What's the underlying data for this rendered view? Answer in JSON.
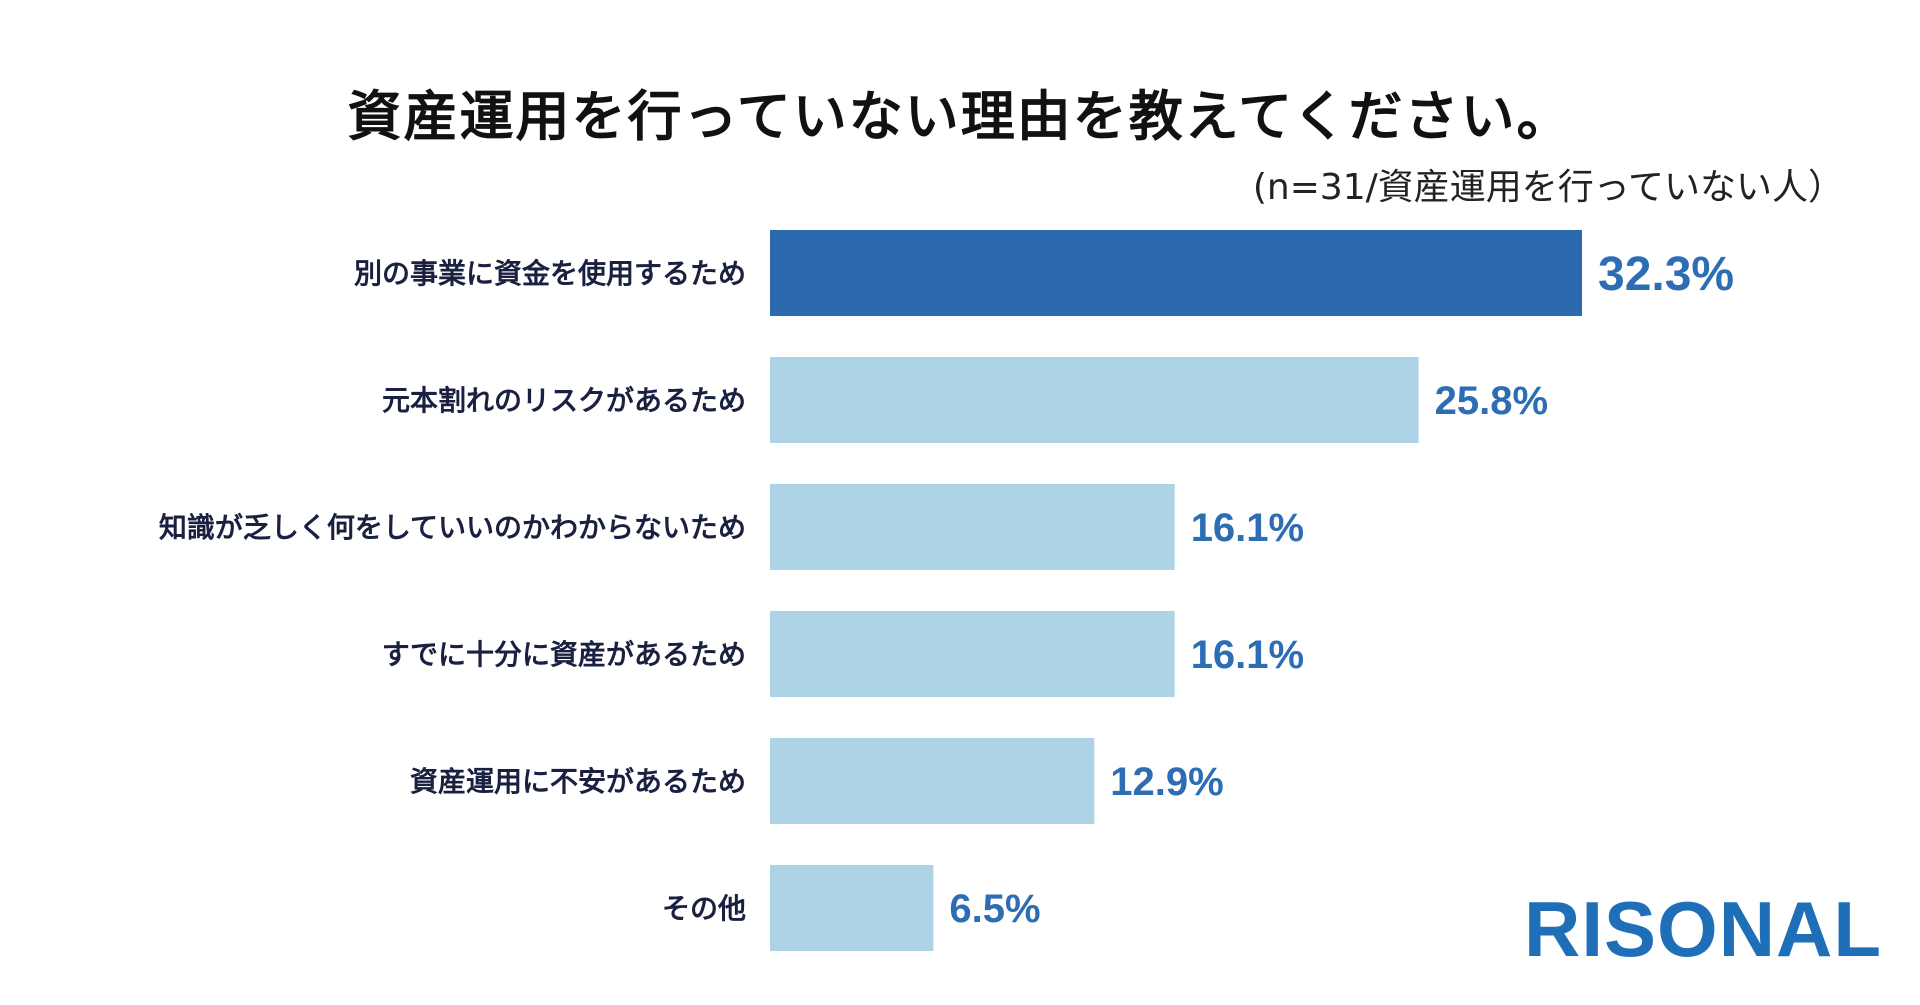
{
  "chart_data": {
    "type": "bar",
    "orientation": "horizontal",
    "title": "資産運用を行っていない理由を教えてください。",
    "subtitle": "(n=31/資産運用を行っていない人）",
    "categories": [
      "別の事業に資金を使用するため",
      "元本割れのリスクがあるため",
      "知識が乏しく何をしていいのかわからないため",
      "すでに十分に資産があるため",
      "資産運用に不安があるため",
      "その他"
    ],
    "values": [
      32.3,
      25.8,
      16.1,
      16.1,
      12.9,
      6.5
    ],
    "value_labels": [
      "32.3%",
      "25.8%",
      "16.1%",
      "16.1%",
      "12.9%",
      "6.5%"
    ],
    "highlight_index": 0,
    "xlim": [
      0,
      32.3
    ],
    "xlabel": "",
    "ylabel": "",
    "grid": false,
    "legend": "none"
  },
  "colors": {
    "highlight_bar": "#2b6aaf",
    "bar": "#aed2e6",
    "value_text": "#2d6db4",
    "category_text": "#1a2140",
    "title_text": "#111111",
    "logo": "#1f6fb8"
  },
  "logo": {
    "text": "RISONAL"
  }
}
